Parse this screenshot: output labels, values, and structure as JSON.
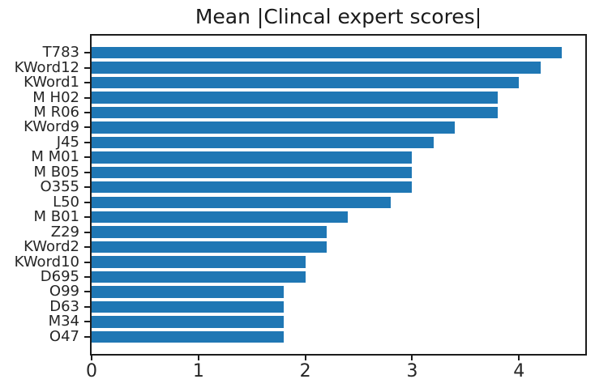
{
  "chart_data": {
    "type": "bar",
    "orientation": "horizontal",
    "title": "Mean |Clincal expert scores|",
    "categories": [
      "T783",
      "KWord12",
      "KWord1",
      "M H02",
      "M R06",
      "KWord9",
      "J45",
      "M M01",
      "M B05",
      "O355",
      "L50",
      "M B01",
      "Z29",
      "KWord2",
      "KWord10",
      "D695",
      "O99",
      "D63",
      "M34",
      "O47"
    ],
    "values": [
      4.4,
      4.2,
      4.0,
      3.8,
      3.8,
      3.4,
      3.2,
      3.0,
      3.0,
      3.0,
      2.8,
      2.4,
      2.2,
      2.2,
      2.0,
      2.0,
      1.8,
      1.8,
      1.8,
      1.8
    ],
    "xlabel": "",
    "ylabel": "",
    "xlim": [
      0,
      4.62
    ],
    "x_ticks": [
      0,
      1,
      2,
      3,
      4
    ],
    "bar_color": "#1f77b4",
    "grid": false,
    "legend": null
  }
}
